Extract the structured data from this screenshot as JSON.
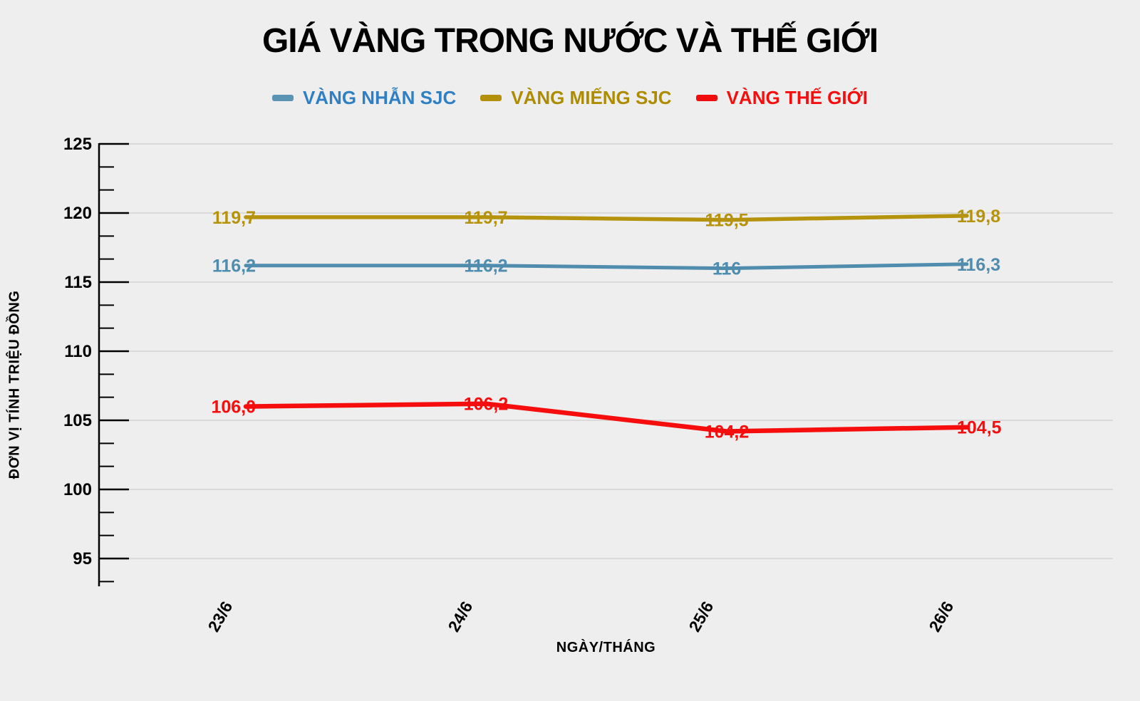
{
  "title": "GIÁ VÀNG TRONG NƯỚC VÀ THẾ GIỚI",
  "colors": {
    "background": "#eeeeee",
    "gridline": "#d4d4d4",
    "axis": "#000000",
    "tick_label": "#000000"
  },
  "legend": [
    {
      "label": "VÀNG NHẪN SJC",
      "marker_color": "#5b93b5",
      "text_color": "#2e7fc4"
    },
    {
      "label": "VÀNG MIẾNG SJC",
      "marker_color": "#b2900a",
      "text_color": "#ad8c00"
    },
    {
      "label": "VÀNG THẾ GIỚI",
      "marker_color": "#f00c0c",
      "text_color": "#f60d0d"
    }
  ],
  "chart_data": {
    "type": "line",
    "title": "GIÁ VÀNG TRONG NƯỚC VÀ THẾ GIỚI",
    "categories": [
      "23/6",
      "24/6",
      "25/6",
      "26/6"
    ],
    "series": [
      {
        "name": "VÀNG MIẾNG SJC",
        "color": "#b5930d",
        "stroke_width": 5.5,
        "values": [
          119.7,
          119.7,
          119.5,
          119.8
        ],
        "labels": [
          "119,7",
          "119,7",
          "119,5",
          "119,8"
        ]
      },
      {
        "name": "VÀNG NHẪN SJC",
        "color": "#4f8cae",
        "stroke_width": 5,
        "values": [
          116.2,
          116.2,
          116.0,
          116.3
        ],
        "labels": [
          "116,2",
          "116,2",
          "116",
          "116,3"
        ]
      },
      {
        "name": "VÀNG THẾ GIỚI",
        "color": "#f60d0d",
        "stroke_width": 6.5,
        "values": [
          106.0,
          106.2,
          104.2,
          104.5
        ],
        "labels": [
          "106,0",
          "106,2",
          "104,2",
          "104,5"
        ]
      }
    ],
    "xlabel": "NGÀY/THÁNG",
    "ylabel": "ĐƠN VỊ TÍNH TRIỆU ĐỒNG",
    "ylim": [
      95,
      125
    ],
    "yticks": [
      125,
      120,
      115,
      110,
      105,
      100,
      95
    ],
    "minor_ticks_per_interval": 2,
    "grid": true,
    "legend_position": "top"
  }
}
